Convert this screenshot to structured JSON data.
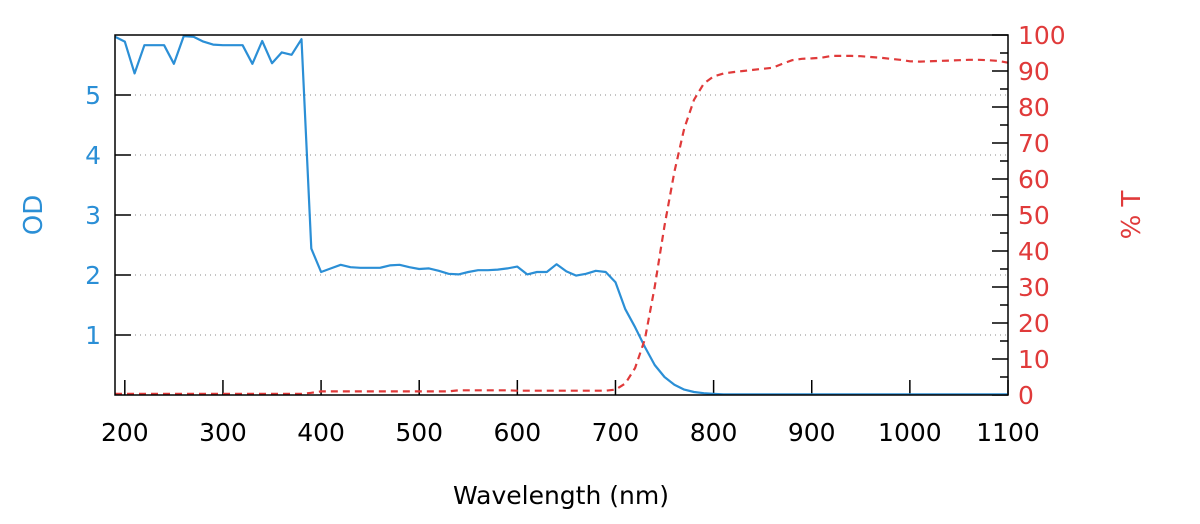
{
  "chart_data": {
    "type": "line",
    "title": "",
    "xlabel": "Wavelength (nm)",
    "ylabel_left": "OD",
    "ylabel_right": "% T",
    "xlim": [
      190,
      1100
    ],
    "ylim_left": [
      0,
      6
    ],
    "ylim_right": [
      0,
      100
    ],
    "x_ticks": [
      200,
      300,
      400,
      500,
      600,
      700,
      800,
      900,
      1000,
      1100
    ],
    "y_left_ticks": [
      1,
      2,
      3,
      4,
      5
    ],
    "y_right_ticks": [
      0,
      10,
      20,
      30,
      40,
      50,
      60,
      70,
      80,
      90,
      100
    ],
    "grid": "horizontal dotted at left-axis ticks",
    "colors": {
      "od": "#2b8fd6",
      "t": "#e03a3a",
      "axis": "#000000",
      "grid": "#888888"
    },
    "x": [
      190,
      200,
      210,
      220,
      230,
      240,
      250,
      260,
      270,
      280,
      290,
      300,
      310,
      320,
      330,
      340,
      350,
      360,
      370,
      380,
      390,
      400,
      410,
      420,
      430,
      440,
      450,
      460,
      470,
      480,
      490,
      500,
      510,
      520,
      530,
      540,
      550,
      560,
      570,
      580,
      590,
      600,
      610,
      620,
      630,
      640,
      650,
      660,
      670,
      680,
      690,
      700,
      710,
      720,
      730,
      740,
      750,
      760,
      770,
      780,
      790,
      800,
      810,
      820,
      830,
      840,
      850,
      860,
      870,
      880,
      890,
      900,
      910,
      920,
      930,
      940,
      950,
      960,
      970,
      980,
      990,
      1000,
      1010,
      1020,
      1030,
      1040,
      1050,
      1060,
      1070,
      1080,
      1090,
      1100
    ],
    "series": [
      {
        "axis": "left",
        "style": "solid",
        "values": [
          5.97,
          5.89,
          5.36,
          5.83,
          5.83,
          5.83,
          5.52,
          5.98,
          5.97,
          5.89,
          5.84,
          5.83,
          5.83,
          5.83,
          5.52,
          5.9,
          5.53,
          5.71,
          5.67,
          5.93,
          2.44,
          2.05,
          2.11,
          2.17,
          2.13,
          2.12,
          2.12,
          2.12,
          2.16,
          2.17,
          2.13,
          2.1,
          2.11,
          2.07,
          2.02,
          2.01,
          2.05,
          2.08,
          2.08,
          2.09,
          2.11,
          2.14,
          2.01,
          2.05,
          2.05,
          2.18,
          2.06,
          1.99,
          2.02,
          2.07,
          2.05,
          1.88,
          1.43,
          1.13,
          0.8,
          0.5,
          0.3,
          0.17,
          0.09,
          0.05,
          0.03,
          0.02,
          0.01,
          0.01,
          0.01,
          0.01,
          0.01,
          0.01,
          0.01,
          0.01,
          0.01,
          0.01,
          0.01,
          0.01,
          0.01,
          0.01,
          0.01,
          0.01,
          0.01,
          0.01,
          0.01,
          0.01,
          0.01,
          0.01,
          0.01,
          0.01,
          0.01,
          0.01,
          0.01,
          0.01,
          0.01,
          0.01
        ]
      },
      {
        "axis": "right",
        "style": "dashed",
        "values": [
          0.3,
          0.3,
          0.3,
          0.3,
          0.3,
          0.3,
          0.3,
          0.3,
          0.3,
          0.3,
          0.3,
          0.3,
          0.3,
          0.3,
          0.3,
          0.3,
          0.3,
          0.3,
          0.3,
          0.3,
          0.6,
          1.0,
          1.0,
          1.0,
          1.0,
          1.0,
          1.0,
          1.0,
          1.0,
          1.0,
          1.0,
          1.0,
          1.0,
          1.0,
          1.0,
          1.3,
          1.3,
          1.3,
          1.3,
          1.3,
          1.3,
          1.2,
          1.2,
          1.2,
          1.2,
          1.2,
          1.2,
          1.2,
          1.2,
          1.2,
          1.2,
          1.5,
          3.2,
          7.5,
          15.5,
          30,
          47,
          62,
          74,
          82,
          86.5,
          88.5,
          89.3,
          89.7,
          90,
          90.3,
          90.6,
          90.9,
          92,
          93,
          93.4,
          93.5,
          93.7,
          94.2,
          94.2,
          94.2,
          94.1,
          93.9,
          93.7,
          93.4,
          93.1,
          92.7,
          92.6,
          92.7,
          92.8,
          92.9,
          93,
          93.1,
          93.1,
          93,
          92.8,
          92.3
        ]
      }
    ]
  }
}
